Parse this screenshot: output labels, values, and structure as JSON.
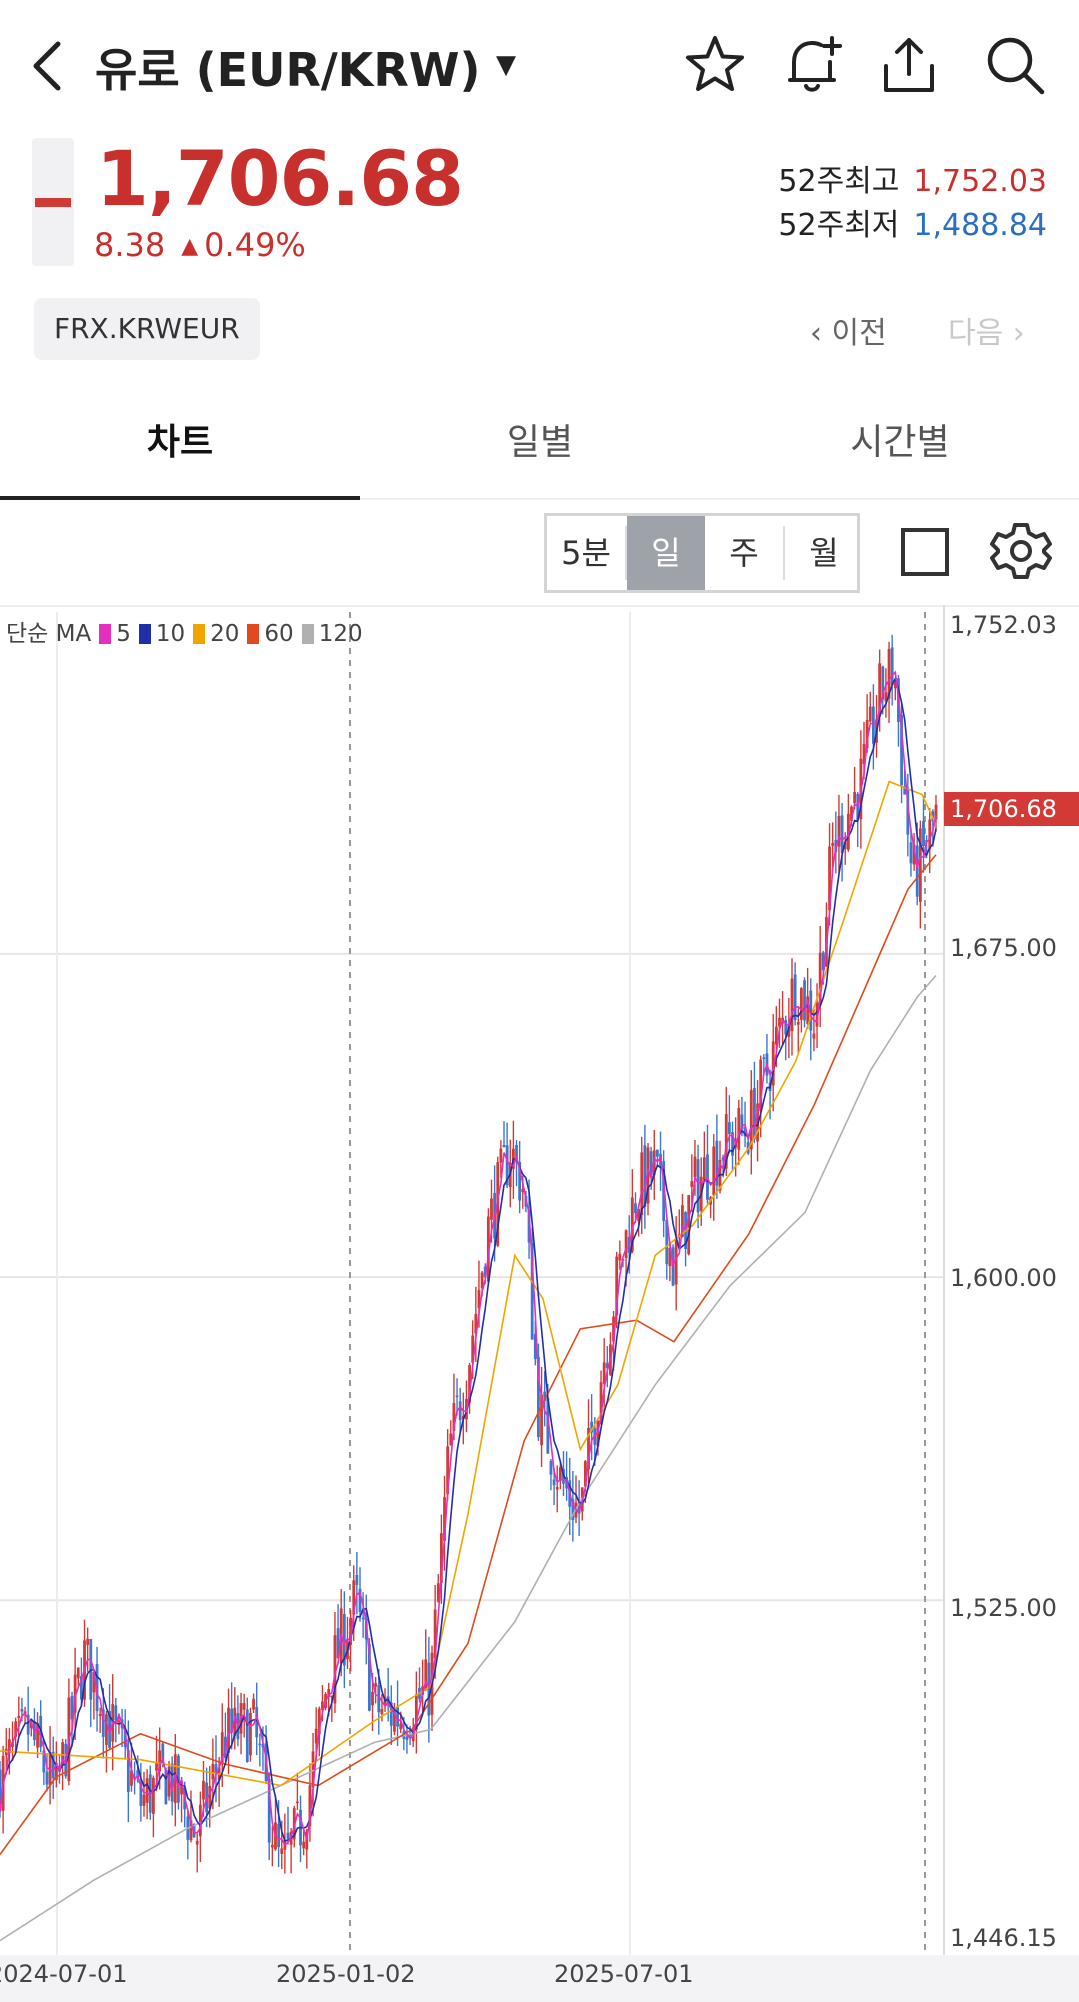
{
  "header": {
    "title": "유로 (EUR/KRW)",
    "caret": "▼",
    "icons": [
      "chevron-left-icon",
      "star-icon",
      "bell-plus-icon",
      "share-icon",
      "search-icon"
    ]
  },
  "quote": {
    "price": "1,706.68",
    "change": "8.38",
    "change_arrow": "▲",
    "change_pct": "0.49%",
    "high_label": "52주최고",
    "high_value": "1,752.03",
    "low_label": "52주최저",
    "low_value": "1,488.84",
    "code": "FRX.KRWEUR",
    "prev_label": "‹ 이전",
    "next_label": "다음 ›",
    "colors": {
      "up": "#c8302d",
      "down": "#2c6fc0"
    }
  },
  "tabs": [
    {
      "label": "차트",
      "active": true
    },
    {
      "label": "일별",
      "active": false
    },
    {
      "label": "시간별",
      "active": false
    }
  ],
  "periods": [
    {
      "label": "5분",
      "active": false
    },
    {
      "label": "일",
      "active": true
    },
    {
      "label": "주",
      "active": false
    },
    {
      "label": "월",
      "active": false
    }
  ],
  "chart_controls": {
    "icons": [
      "square-icon",
      "gear-icon"
    ]
  },
  "chart_data": {
    "type": "candlestick",
    "legend": {
      "prefix": "단순 MA",
      "periods": [
        "5",
        "10",
        "20",
        "60",
        "120"
      ],
      "colors": [
        "#e52fbf",
        "#1f2fa8",
        "#f0a500",
        "#e04a1e",
        "#b0b0b0"
      ]
    },
    "y_ticks": [
      "1,752.03",
      "1,675.00",
      "1,600.00",
      "1,525.00",
      "1,446.15"
    ],
    "ylim": [
      1446.15,
      1752.03
    ],
    "current_price_label": "1,706.68",
    "x_ticks": [
      "2024-07-01",
      "2025-01-02",
      "2025-07-01"
    ],
    "dashed_dates": [
      "2025-01-02"
    ],
    "colors": {
      "up": "#d23b35",
      "down": "#3a78d0"
    },
    "price_path": [
      [
        0,
        1484
      ],
      [
        0.03,
        1495
      ],
      [
        0.06,
        1480
      ],
      [
        0.09,
        1512
      ],
      [
        0.12,
        1495
      ],
      [
        0.15,
        1478
      ],
      [
        0.18,
        1485
      ],
      [
        0.21,
        1470
      ],
      [
        0.24,
        1493
      ],
      [
        0.27,
        1496
      ],
      [
        0.3,
        1462
      ],
      [
        0.325,
        1475
      ],
      [
        0.35,
        1506
      ],
      [
        0.38,
        1525
      ],
      [
        0.4,
        1500
      ],
      [
        0.43,
        1498
      ],
      [
        0.46,
        1505
      ],
      [
        0.48,
        1560
      ],
      [
        0.5,
        1580
      ],
      [
        0.52,
        1610
      ],
      [
        0.545,
        1630
      ],
      [
        0.56,
        1620
      ],
      [
        0.575,
        1570
      ],
      [
        0.6,
        1552
      ],
      [
        0.62,
        1545
      ],
      [
        0.64,
        1575
      ],
      [
        0.66,
        1600
      ],
      [
        0.68,
        1620
      ],
      [
        0.7,
        1625
      ],
      [
        0.72,
        1602
      ],
      [
        0.74,
        1620
      ],
      [
        0.77,
        1630
      ],
      [
        0.8,
        1635
      ],
      [
        0.82,
        1648
      ],
      [
        0.85,
        1668
      ],
      [
        0.87,
        1660
      ],
      [
        0.89,
        1700
      ],
      [
        0.92,
        1715
      ],
      [
        0.94,
        1735
      ],
      [
        0.955,
        1742
      ],
      [
        0.965,
        1715
      ],
      [
        0.975,
        1692
      ],
      [
        0.99,
        1700
      ],
      [
        1.0,
        1707
      ]
    ],
    "ma_paths": {
      "20": [
        [
          0,
          1490
        ],
        [
          0.15,
          1488
        ],
        [
          0.3,
          1482
        ],
        [
          0.4,
          1497
        ],
        [
          0.46,
          1505
        ],
        [
          0.5,
          1545
        ],
        [
          0.55,
          1605
        ],
        [
          0.58,
          1595
        ],
        [
          0.62,
          1560
        ],
        [
          0.66,
          1575
        ],
        [
          0.7,
          1605
        ],
        [
          0.74,
          1612
        ],
        [
          0.8,
          1630
        ],
        [
          0.85,
          1650
        ],
        [
          0.9,
          1682
        ],
        [
          0.95,
          1715
        ],
        [
          0.985,
          1712
        ],
        [
          1.0,
          1705
        ]
      ],
      "60": [
        [
          0,
          1466
        ],
        [
          0.06,
          1484
        ],
        [
          0.15,
          1494
        ],
        [
          0.24,
          1487
        ],
        [
          0.34,
          1482
        ],
        [
          0.44,
          1495
        ],
        [
          0.5,
          1515
        ],
        [
          0.56,
          1562
        ],
        [
          0.62,
          1588
        ],
        [
          0.68,
          1590
        ],
        [
          0.72,
          1585
        ],
        [
          0.8,
          1610
        ],
        [
          0.87,
          1640
        ],
        [
          0.93,
          1670
        ],
        [
          0.97,
          1690
        ],
        [
          1.0,
          1698
        ]
      ],
      "120": [
        [
          0,
          1446
        ],
        [
          0.1,
          1460
        ],
        [
          0.2,
          1472
        ],
        [
          0.3,
          1482
        ],
        [
          0.4,
          1492
        ],
        [
          0.46,
          1495
        ],
        [
          0.55,
          1520
        ],
        [
          0.62,
          1548
        ],
        [
          0.7,
          1575
        ],
        [
          0.78,
          1598
        ],
        [
          0.86,
          1615
        ],
        [
          0.93,
          1648
        ],
        [
          0.98,
          1665
        ],
        [
          1.0,
          1670
        ]
      ]
    }
  }
}
